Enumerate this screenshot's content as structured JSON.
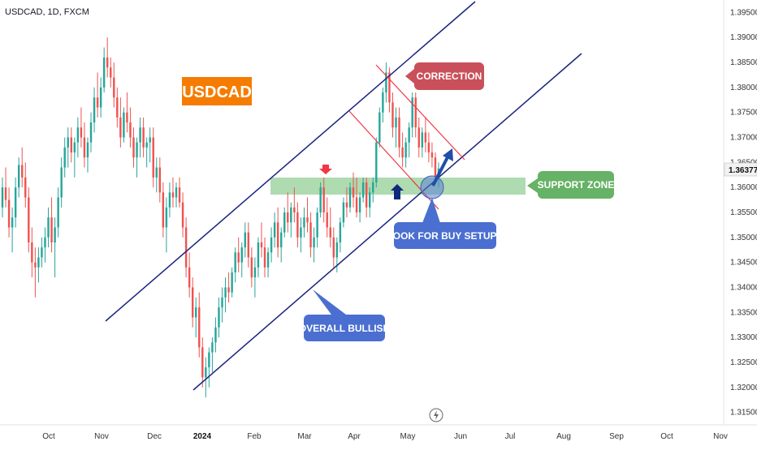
{
  "header": {
    "symbol_info": "USDCAD, 1D, FXCM"
  },
  "chart_data": {
    "type": "candlestick",
    "symbol": "USDCAD",
    "interval": "1D",
    "source": "FXCM",
    "last_price": "1.36377",
    "y_range": [
      1.3125,
      1.3975
    ],
    "y_ticks": [
      "1.39500",
      "1.39000",
      "1.38500",
      "1.38000",
      "1.37500",
      "1.37000",
      "1.36500",
      "1.36000",
      "1.35500",
      "1.35000",
      "1.34500",
      "1.34000",
      "1.33500",
      "1.33000",
      "1.32500",
      "1.32000",
      "1.31500"
    ],
    "x_ticks": [
      "Oct",
      "Nov",
      "Dec",
      "2024",
      "Feb",
      "Mar",
      "Apr",
      "May",
      "Jun",
      "Jul",
      "Aug",
      "Sep",
      "Oct",
      "Nov"
    ],
    "candles": [
      [
        1.356,
        1.362,
        1.354,
        1.36
      ],
      [
        1.36,
        1.364,
        1.356,
        1.3575
      ],
      [
        1.3575,
        1.36,
        1.35,
        1.352
      ],
      [
        1.352,
        1.356,
        1.347,
        1.354
      ],
      [
        1.354,
        1.362,
        1.352,
        1.36
      ],
      [
        1.36,
        1.366,
        1.358,
        1.3645
      ],
      [
        1.3645,
        1.368,
        1.36,
        1.362
      ],
      [
        1.362,
        1.365,
        1.356,
        1.358
      ],
      [
        1.358,
        1.36,
        1.347,
        1.349
      ],
      [
        1.349,
        1.352,
        1.342,
        1.345
      ],
      [
        1.345,
        1.348,
        1.338,
        1.344
      ],
      [
        1.344,
        1.348,
        1.341,
        1.346
      ],
      [
        1.346,
        1.35,
        1.344,
        1.348
      ],
      [
        1.348,
        1.352,
        1.345,
        1.35
      ],
      [
        1.35,
        1.356,
        1.348,
        1.354
      ],
      [
        1.354,
        1.358,
        1.347,
        1.349
      ],
      [
        1.349,
        1.354,
        1.342,
        1.352
      ],
      [
        1.352,
        1.36,
        1.35,
        1.358
      ],
      [
        1.358,
        1.366,
        1.356,
        1.364
      ],
      [
        1.364,
        1.37,
        1.362,
        1.368
      ],
      [
        1.368,
        1.372,
        1.364,
        1.37
      ],
      [
        1.37,
        1.372,
        1.365,
        1.367
      ],
      [
        1.367,
        1.37,
        1.362,
        1.369
      ],
      [
        1.369,
        1.374,
        1.366,
        1.372
      ],
      [
        1.372,
        1.376,
        1.368,
        1.37
      ],
      [
        1.37,
        1.373,
        1.364,
        1.366
      ],
      [
        1.366,
        1.37,
        1.363,
        1.369
      ],
      [
        1.369,
        1.375,
        1.367,
        1.373
      ],
      [
        1.373,
        1.38,
        1.371,
        1.378
      ],
      [
        1.378,
        1.383,
        1.374,
        1.376
      ],
      [
        1.376,
        1.382,
        1.374,
        1.38
      ],
      [
        1.38,
        1.388,
        1.379,
        1.386
      ],
      [
        1.386,
        1.39,
        1.382,
        1.384
      ],
      [
        1.384,
        1.386,
        1.38,
        1.382
      ],
      [
        1.382,
        1.385,
        1.376,
        1.378
      ],
      [
        1.378,
        1.38,
        1.372,
        1.374
      ],
      [
        1.374,
        1.378,
        1.368,
        1.37
      ],
      [
        1.37,
        1.376,
        1.369,
        1.375
      ],
      [
        1.375,
        1.379,
        1.371,
        1.373
      ],
      [
        1.373,
        1.376,
        1.368,
        1.37
      ],
      [
        1.37,
        1.372,
        1.364,
        1.366
      ],
      [
        1.366,
        1.37,
        1.362,
        1.369
      ],
      [
        1.369,
        1.374,
        1.366,
        1.372
      ],
      [
        1.372,
        1.374,
        1.366,
        1.368
      ],
      [
        1.368,
        1.37,
        1.364,
        1.369
      ],
      [
        1.369,
        1.372,
        1.365,
        1.37
      ],
      [
        1.37,
        1.372,
        1.36,
        1.362
      ],
      [
        1.362,
        1.366,
        1.359,
        1.364
      ],
      [
        1.364,
        1.366,
        1.357,
        1.359
      ],
      [
        1.359,
        1.361,
        1.35,
        1.352
      ],
      [
        1.352,
        1.358,
        1.347,
        1.356
      ],
      [
        1.356,
        1.361,
        1.354,
        1.359
      ],
      [
        1.359,
        1.362,
        1.356,
        1.358
      ],
      [
        1.358,
        1.361,
        1.356,
        1.36
      ],
      [
        1.36,
        1.362,
        1.356,
        1.357
      ],
      [
        1.357,
        1.359,
        1.35,
        1.352
      ],
      [
        1.352,
        1.354,
        1.342,
        1.344
      ],
      [
        1.344,
        1.347,
        1.338,
        1.34
      ],
      [
        1.34,
        1.342,
        1.332,
        1.334
      ],
      [
        1.334,
        1.338,
        1.33,
        1.336
      ],
      [
        1.336,
        1.339,
        1.326,
        1.328
      ],
      [
        1.328,
        1.33,
        1.32,
        1.322
      ],
      [
        1.322,
        1.326,
        1.318,
        1.324
      ],
      [
        1.324,
        1.328,
        1.32,
        1.327
      ],
      [
        1.327,
        1.33,
        1.323,
        1.329
      ],
      [
        1.329,
        1.334,
        1.327,
        1.332
      ],
      [
        1.332,
        1.338,
        1.33,
        1.336
      ],
      [
        1.336,
        1.34,
        1.333,
        1.338
      ],
      [
        1.338,
        1.342,
        1.335,
        1.34
      ],
      [
        1.34,
        1.343,
        1.337,
        1.339
      ],
      [
        1.339,
        1.344,
        1.338,
        1.343
      ],
      [
        1.343,
        1.348,
        1.341,
        1.347
      ],
      [
        1.347,
        1.35,
        1.343,
        1.345
      ],
      [
        1.345,
        1.349,
        1.342,
        1.348
      ],
      [
        1.348,
        1.353,
        1.346,
        1.351
      ],
      [
        1.351,
        1.353,
        1.344,
        1.346
      ],
      [
        1.346,
        1.348,
        1.34,
        1.342
      ],
      [
        1.342,
        1.346,
        1.338,
        1.344
      ],
      [
        1.344,
        1.35,
        1.342,
        1.349
      ],
      [
        1.349,
        1.353,
        1.346,
        1.348
      ],
      [
        1.348,
        1.35,
        1.342,
        1.344
      ],
      [
        1.344,
        1.348,
        1.342,
        1.347
      ],
      [
        1.347,
        1.352,
        1.345,
        1.35
      ],
      [
        1.35,
        1.355,
        1.348,
        1.353
      ],
      [
        1.353,
        1.356,
        1.346,
        1.348
      ],
      [
        1.348,
        1.352,
        1.345,
        1.351
      ],
      [
        1.351,
        1.356,
        1.35,
        1.355
      ],
      [
        1.355,
        1.359,
        1.351,
        1.353
      ],
      [
        1.353,
        1.357,
        1.35,
        1.356
      ],
      [
        1.356,
        1.36,
        1.353,
        1.355
      ],
      [
        1.355,
        1.357,
        1.348,
        1.35
      ],
      [
        1.35,
        1.354,
        1.347,
        1.352
      ],
      [
        1.352,
        1.356,
        1.35,
        1.354
      ],
      [
        1.354,
        1.358,
        1.351,
        1.353
      ],
      [
        1.353,
        1.355,
        1.346,
        1.348
      ],
      [
        1.348,
        1.352,
        1.345,
        1.35
      ],
      [
        1.35,
        1.356,
        1.348,
        1.355
      ],
      [
        1.355,
        1.361,
        1.354,
        1.36
      ],
      [
        1.36,
        1.362,
        1.353,
        1.355
      ],
      [
        1.355,
        1.358,
        1.35,
        1.352
      ],
      [
        1.352,
        1.356,
        1.348,
        1.35
      ],
      [
        1.35,
        1.352,
        1.344,
        1.346
      ],
      [
        1.346,
        1.35,
        1.343,
        1.349
      ],
      [
        1.349,
        1.354,
        1.347,
        1.353
      ],
      [
        1.353,
        1.358,
        1.352,
        1.357
      ],
      [
        1.357,
        1.36,
        1.354,
        1.356
      ],
      [
        1.356,
        1.361,
        1.355,
        1.36
      ],
      [
        1.36,
        1.363,
        1.356,
        1.358
      ],
      [
        1.358,
        1.362,
        1.354,
        1.355
      ],
      [
        1.355,
        1.359,
        1.353,
        1.358
      ],
      [
        1.358,
        1.362,
        1.357,
        1.361
      ],
      [
        1.361,
        1.362,
        1.354,
        1.356
      ],
      [
        1.356,
        1.36,
        1.354,
        1.359
      ],
      [
        1.359,
        1.362,
        1.357,
        1.361
      ],
      [
        1.361,
        1.37,
        1.36,
        1.369
      ],
      [
        1.369,
        1.376,
        1.368,
        1.375
      ],
      [
        1.375,
        1.38,
        1.373,
        1.379
      ],
      [
        1.379,
        1.385,
        1.377,
        1.383
      ],
      [
        1.383,
        1.384,
        1.375,
        1.377
      ],
      [
        1.377,
        1.379,
        1.37,
        1.372
      ],
      [
        1.372,
        1.376,
        1.368,
        1.374
      ],
      [
        1.374,
        1.376,
        1.366,
        1.368
      ],
      [
        1.368,
        1.371,
        1.364,
        1.366
      ],
      [
        1.366,
        1.37,
        1.364,
        1.369
      ],
      [
        1.369,
        1.373,
        1.366,
        1.372
      ],
      [
        1.372,
        1.379,
        1.37,
        1.378
      ],
      [
        1.378,
        1.379,
        1.37,
        1.372
      ],
      [
        1.372,
        1.374,
        1.366,
        1.368
      ],
      [
        1.368,
        1.372,
        1.366,
        1.371
      ],
      [
        1.371,
        1.374,
        1.367,
        1.369
      ],
      [
        1.369,
        1.371,
        1.365,
        1.367
      ],
      [
        1.367,
        1.369,
        1.364,
        1.366
      ],
      [
        1.366,
        1.367,
        1.361,
        1.362
      ],
      [
        1.362,
        1.365,
        1.36,
        1.3638
      ]
    ],
    "annotations": {
      "title_label": "USDCAD",
      "correction": "CORRECTION",
      "support_zone": "SUPPORT ZONE",
      "buy_setups": "LOOK FOR BUY SETUPS",
      "overall_bullish": "OVERALL BULLISH"
    },
    "colors": {
      "bull": "#26a69a",
      "bear": "#ef5350",
      "channel": "#1a237e",
      "correction_line": "#f23645",
      "support_zone": "#4caf50",
      "title_bg": "#f57c00",
      "correction_bg": "#c9505a",
      "support_bg": "#66b266",
      "blue_label_bg": "#4a6fd0"
    }
  }
}
